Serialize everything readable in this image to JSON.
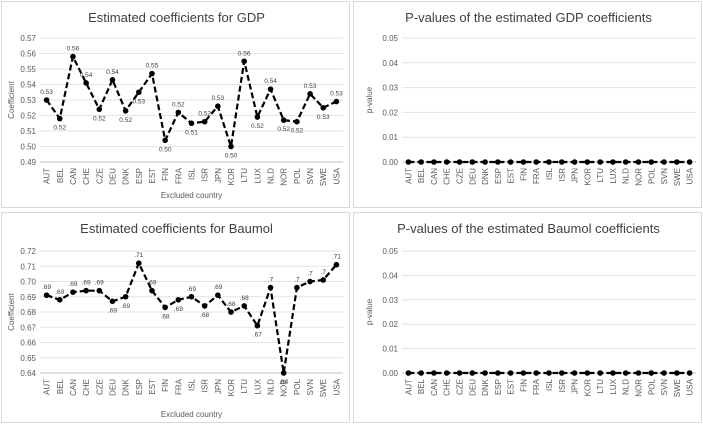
{
  "chart_data": [
    {
      "type": "line",
      "title": "Estimated coefficients for GDP",
      "xlabel": "Excluded country",
      "ylabel": "Coefficient",
      "ylim": [
        0.49,
        0.57
      ],
      "yticks": [
        "0.49",
        "0.50",
        "0.51",
        "0.52",
        "0.53",
        "0.54",
        "0.55",
        "0.56",
        "0.57"
      ],
      "ytick_values": [
        0.49,
        0.5,
        0.51,
        0.52,
        0.53,
        0.54,
        0.55,
        0.56,
        0.57
      ],
      "grid": true,
      "categories": [
        "AUT",
        "BEL",
        "CAN",
        "CHE",
        "CZE",
        "DEU",
        "DNK",
        "ESP",
        "EST",
        "FIN",
        "FRA",
        "ISL",
        "ISR",
        "JPN",
        "KOR",
        "LTU",
        "LUX",
        "NLD",
        "NOR",
        "POL",
        "SVN",
        "SWE",
        "USA"
      ],
      "values": [
        0.53,
        0.518,
        0.558,
        0.541,
        0.524,
        0.543,
        0.523,
        0.535,
        0.547,
        0.504,
        0.522,
        0.515,
        0.516,
        0.526,
        0.5,
        0.555,
        0.519,
        0.537,
        0.517,
        0.516,
        0.534,
        0.525,
        0.529
      ],
      "data_labels": [
        "0.53",
        "0.52",
        "0.56",
        "0.54",
        "0.52",
        "0.54",
        "0.52",
        "0.53",
        "0.55",
        "0.50",
        "0.52",
        "0.51",
        "0.52",
        "0.53",
        "0.50",
        "0.56",
        "0.52",
        "0.54",
        "0.52",
        "0.52",
        "0.53",
        "0.53",
        "0.53"
      ],
      "label_positions": [
        "above",
        "below",
        "above",
        "above",
        "below",
        "above",
        "below",
        "below",
        "above",
        "below",
        "above",
        "below",
        "above",
        "above",
        "below",
        "above",
        "below",
        "above",
        "below",
        "below",
        "above",
        "below",
        "above"
      ]
    },
    {
      "type": "line",
      "title": "P-values of the estimated GDP coefficients",
      "xlabel": "",
      "ylabel": "p-value",
      "ylim": [
        0,
        0.05
      ],
      "yticks": [
        "0.00",
        "0.01",
        "0.02",
        "0.03",
        "0.04",
        "0.05"
      ],
      "ytick_values": [
        0,
        0.01,
        0.02,
        0.03,
        0.04,
        0.05
      ],
      "grid": true,
      "categories": [
        "AUT",
        "BEL",
        "CAN",
        "CHE",
        "CZE",
        "DEU",
        "DNK",
        "ESP",
        "EST",
        "FIN",
        "FRA",
        "ISL",
        "ISR",
        "JPN",
        "KOR",
        "LTU",
        "LUX",
        "NLD",
        "NOR",
        "POL",
        "SVN",
        "SWE",
        "USA"
      ],
      "values": [
        0,
        0,
        0,
        0,
        0,
        0,
        0,
        0,
        0,
        0,
        0,
        0,
        0,
        0,
        0,
        0,
        0,
        0,
        0,
        0,
        0,
        0,
        0
      ]
    },
    {
      "type": "line",
      "title": "Estimated coefficients for Baumol",
      "xlabel": "Excluded country",
      "ylabel": "Coefficient",
      "ylim": [
        0.64,
        0.72
      ],
      "yticks": [
        "0.64",
        "0.65",
        "0.66",
        "0.67",
        "0.68",
        "0.69",
        "0.70",
        "0.71",
        "0.72"
      ],
      "ytick_values": [
        0.64,
        0.65,
        0.66,
        0.67,
        0.68,
        0.69,
        0.7,
        0.71,
        0.72
      ],
      "grid": true,
      "categories": [
        "AUT",
        "BEL",
        "CAN",
        "CHE",
        "CZE",
        "DEU",
        "DNK",
        "ESP",
        "EST",
        "FIN",
        "FRA",
        "ISL",
        "ISR",
        "JPN",
        "KOR",
        "LTU",
        "LUX",
        "NLD",
        "NOR",
        "POL",
        "SVN",
        "SWE",
        "USA"
      ],
      "values": [
        0.691,
        0.688,
        0.693,
        0.694,
        0.694,
        0.687,
        0.69,
        0.712,
        0.694,
        0.683,
        0.688,
        0.69,
        0.684,
        0.691,
        0.68,
        0.684,
        0.671,
        0.696,
        0.64,
        0.696,
        0.7,
        0.701,
        0.711
      ],
      "data_labels": [
        ".69",
        ".69",
        ".69",
        ".69",
        ".69",
        ".69",
        ".69",
        ".71",
        ".69",
        ".68",
        ".69",
        ".69",
        ".68",
        ".69",
        ".68",
        ".68",
        ".67",
        ".7",
        ".64",
        ".7",
        ".7",
        ".7",
        ".71"
      ],
      "label_positions": [
        "above",
        "above",
        "above",
        "above",
        "above",
        "below",
        "below",
        "above",
        "above",
        "below",
        "below",
        "above",
        "below",
        "above",
        "above",
        "above",
        "below",
        "above",
        "below",
        "above",
        "above",
        "above",
        "above"
      ]
    },
    {
      "type": "line",
      "title": "P-values of the estimated Baumol coefficients",
      "xlabel": "",
      "ylabel": "p-value",
      "ylim": [
        0,
        0.05
      ],
      "yticks": [
        "0.00",
        "0.01",
        "0.02",
        "0.03",
        "0.04",
        "0.05"
      ],
      "ytick_values": [
        0,
        0.01,
        0.02,
        0.03,
        0.04,
        0.05
      ],
      "grid": true,
      "categories": [
        "AUT",
        "BEL",
        "CAN",
        "CHE",
        "CZE",
        "DEU",
        "DNK",
        "ESP",
        "EST",
        "FIN",
        "FRA",
        "ISL",
        "ISR",
        "JPN",
        "KOR",
        "LTU",
        "LUX",
        "NLD",
        "NOR",
        "POL",
        "SVN",
        "SWE",
        "USA"
      ],
      "values": [
        0,
        0,
        0,
        0,
        0,
        0,
        0,
        0,
        0,
        0,
        0,
        0,
        0,
        0,
        0,
        0,
        0,
        0,
        0,
        0,
        0,
        0,
        0
      ]
    }
  ]
}
